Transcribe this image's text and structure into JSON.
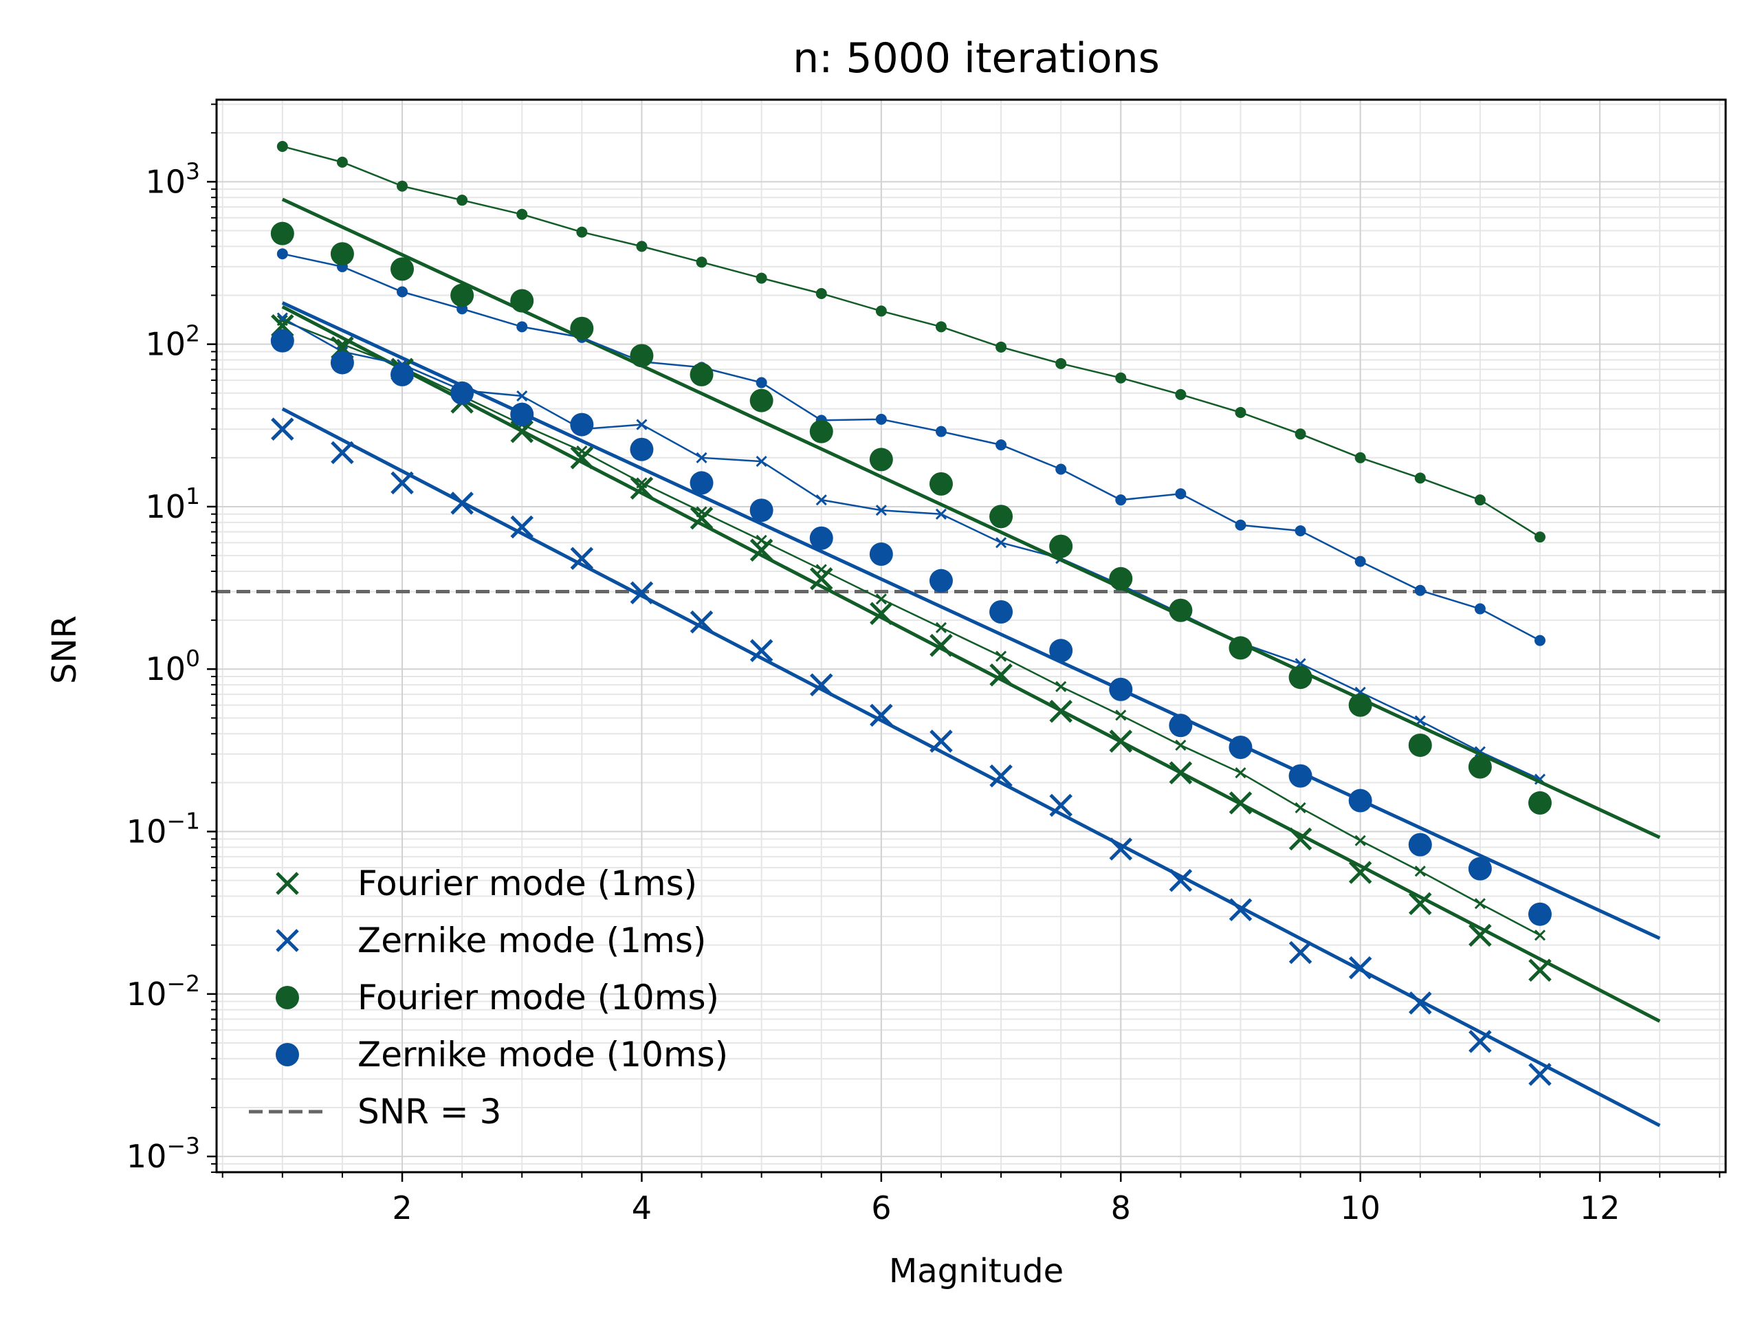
{
  "chart_data": {
    "type": "scatter",
    "title": "n: 5000 iterations",
    "xlabel": "Magnitude",
    "ylabel": "SNR",
    "xlim": [
      0.45,
      13.05
    ],
    "ylim": [
      0.0008,
      3200
    ],
    "yscale": "log",
    "grid": true,
    "legend_position": "lower-left",
    "x_ticks": [
      {
        "value": 2,
        "label": "2"
      },
      {
        "value": 4,
        "label": "4"
      },
      {
        "value": 6,
        "label": "6"
      },
      {
        "value": 8,
        "label": "8"
      },
      {
        "value": 10,
        "label": "10"
      },
      {
        "value": 12,
        "label": "12"
      }
    ],
    "y_ticks": [
      {
        "value": 0.001,
        "base": "10",
        "exp": "−3"
      },
      {
        "value": 0.01,
        "base": "10",
        "exp": "−2"
      },
      {
        "value": 0.1,
        "base": "10",
        "exp": "−1"
      },
      {
        "value": 1,
        "base": "10",
        "exp": "0"
      },
      {
        "value": 10,
        "base": "10",
        "exp": "1"
      },
      {
        "value": 100,
        "base": "10",
        "exp": "2"
      },
      {
        "value": 1000,
        "base": "10",
        "exp": "3"
      }
    ],
    "colors": {
      "green": "#115c27",
      "blue": "#0a50a0",
      "threshold": "#666666"
    },
    "x": [
      1,
      1.5,
      2,
      2.5,
      3,
      3.5,
      4,
      4.5,
      5,
      5.5,
      6,
      6.5,
      7,
      7.5,
      8,
      8.5,
      9,
      9.5,
      10,
      10.5,
      11,
      11.5
    ],
    "series": [
      {
        "name": "Fourier mode (1ms)",
        "marker": "x",
        "color": "#115c27",
        "values": [
          130,
          95,
          70,
          44,
          29,
          20,
          13,
          8.5,
          5.4,
          3.6,
          2.2,
          1.4,
          0.92,
          0.55,
          0.36,
          0.23,
          0.15,
          0.09,
          0.056,
          0.036,
          0.023,
          0.014
        ],
        "fit": {
          "x": [
            1,
            12.5
          ],
          "y": [
            170,
            0.0068
          ]
        },
        "reference_curve": {
          "values": [
            140,
            100,
            72,
            48,
            32,
            22,
            14,
            9.3,
            6.2,
            4.1,
            2.7,
            1.8,
            1.2,
            0.78,
            0.52,
            0.34,
            0.23,
            0.14,
            0.088,
            0.057,
            0.036,
            0.023
          ]
        }
      },
      {
        "name": "Zernike mode (1ms)",
        "marker": "x",
        "color": "#0a50a0",
        "values": [
          30,
          21.5,
          14,
          10.5,
          7.5,
          4.8,
          2.95,
          1.95,
          1.3,
          0.8,
          0.52,
          0.36,
          0.22,
          0.145,
          0.078,
          0.05,
          0.033,
          0.018,
          0.0145,
          0.0088,
          0.0051,
          0.0032
        ],
        "fit": {
          "x": [
            1,
            12.5
          ],
          "y": [
            40,
            0.00155
          ]
        },
        "reference_curve": {
          "values": [
            145,
            90,
            75,
            52,
            48,
            30,
            32,
            20,
            19,
            11,
            9.5,
            9,
            6,
            4.8,
            3.3,
            2.2,
            1.45,
            1.08,
            0.72,
            0.48,
            0.31,
            0.21
          ]
        }
      },
      {
        "name": "Fourier mode (10ms)",
        "marker": "o",
        "color": "#115c27",
        "values": [
          480,
          360,
          290,
          200,
          185,
          125,
          85,
          65,
          45,
          29,
          19.5,
          13.8,
          8.7,
          5.7,
          3.6,
          2.3,
          1.35,
          0.89,
          0.6,
          0.34,
          0.25,
          0.15
        ],
        "fit": {
          "x": [
            1,
            12.5
          ],
          "y": [
            780,
            0.092
          ]
        },
        "reference_curve": {
          "values": [
            1650,
            1320,
            940,
            770,
            630,
            490,
            400,
            320,
            255,
            205,
            160,
            128,
            96,
            76,
            62,
            49,
            38,
            28,
            20,
            15,
            11,
            6.5
          ]
        }
      },
      {
        "name": "Zernike mode (10ms)",
        "marker": "o",
        "color": "#0a50a0",
        "values": [
          105,
          77,
          65,
          50,
          37,
          32,
          22.5,
          14,
          9.5,
          6.4,
          5.1,
          3.5,
          2.25,
          1.3,
          0.75,
          0.45,
          0.33,
          0.22,
          0.155,
          0.083,
          0.059,
          0.031
        ],
        "fit": {
          "x": [
            1,
            12.5
          ],
          "y": [
            180,
            0.022
          ]
        },
        "reference_curve": {
          "values": [
            360,
            300,
            210,
            165,
            128,
            110,
            78,
            72,
            58,
            34,
            34.5,
            29,
            24,
            17,
            11,
            12,
            7.7,
            7.1,
            4.6,
            3.05,
            2.35,
            1.5
          ]
        }
      }
    ],
    "threshold": {
      "name": "SNR = 3",
      "value": 3,
      "style": "dashed"
    }
  }
}
